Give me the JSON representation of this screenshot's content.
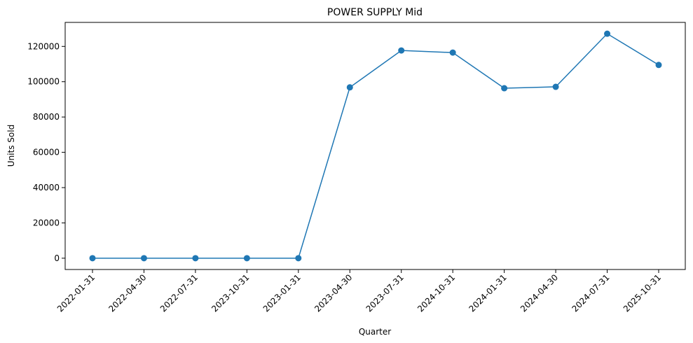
{
  "chart_data": {
    "type": "line",
    "title": "POWER SUPPLY Mid",
    "xlabel": "Quarter",
    "ylabel": "Units Sold",
    "categories": [
      "2022-01-31",
      "2022-04-30",
      "2022-07-31",
      "2023-10-31",
      "2023-01-31",
      "2023-04-30",
      "2023-07-31",
      "2024-10-31",
      "2024-01-31",
      "2024-04-30",
      "2024-07-31",
      "2025-10-31"
    ],
    "series": [
      {
        "values": [
          0,
          0,
          0,
          0,
          0,
          96800,
          117700,
          116500,
          96300,
          97100,
          127200,
          109500
        ],
        "color": "#1f77b4",
        "marker": "circle"
      }
    ],
    "ylim": [
      -6400,
      133600
    ],
    "yticks": [
      0,
      20000,
      40000,
      60000,
      80000,
      100000,
      120000
    ],
    "ytick_labels": [
      "0",
      "20000",
      "40000",
      "60000",
      "80000",
      "100000",
      "120000"
    ],
    "grid": false,
    "legend": "none",
    "xtick_rotation": 45
  }
}
